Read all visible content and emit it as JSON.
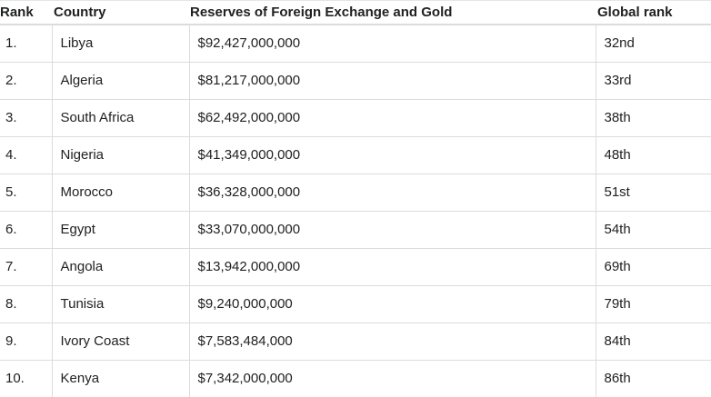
{
  "table": {
    "headers": {
      "rank": "Rank",
      "country": "Country",
      "reserves": "Reserves of Foreign Exchange and Gold",
      "global_rank": "Global rank"
    },
    "rows": [
      {
        "rank": "1.",
        "country": "Libya",
        "reserves": "$92,427,000,000",
        "global_rank": "32nd"
      },
      {
        "rank": "2.",
        "country": "Algeria",
        "reserves": "$81,217,000,000",
        "global_rank": "33rd"
      },
      {
        "rank": "3.",
        "country": "South Africa",
        "reserves": "$62,492,000,000",
        "global_rank": "38th"
      },
      {
        "rank": "4.",
        "country": "Nigeria",
        "reserves": "$41,349,000,000",
        "global_rank": "48th"
      },
      {
        "rank": "5.",
        "country": "Morocco",
        "reserves": "$36,328,000,000",
        "global_rank": "51st"
      },
      {
        "rank": "6.",
        "country": "Egypt",
        "reserves": "$33,070,000,000",
        "global_rank": "54th"
      },
      {
        "rank": "7.",
        "country": "Angola",
        "reserves": "$13,942,000,000",
        "global_rank": "69th"
      },
      {
        "rank": "8.",
        "country": "Tunisia",
        "reserves": "$9,240,000,000",
        "global_rank": "79th"
      },
      {
        "rank": "9.",
        "country": "Ivory Coast",
        "reserves": "$7,583,484,000",
        "global_rank": "84th"
      },
      {
        "rank": "10.",
        "country": "Kenya",
        "reserves": "$7,342,000,000",
        "global_rank": "86th"
      }
    ]
  }
}
